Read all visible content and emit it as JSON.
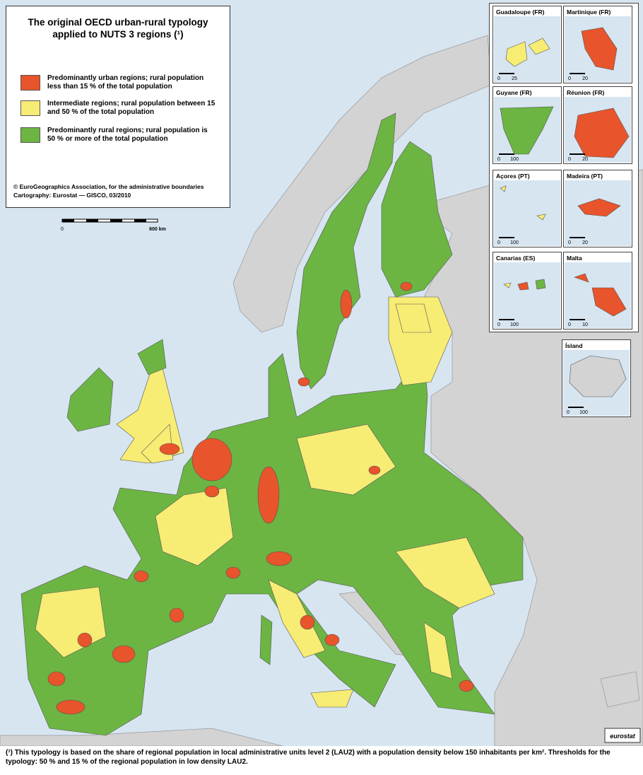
{
  "legend": {
    "title": "The original OECD urban-rural typology applied to NUTS 3 regions (¹)",
    "items": [
      {
        "label": "Predominantly urban regions; rural population less than 15 % of the total population",
        "color": "#e8542b"
      },
      {
        "label": "Intermediate regions; rural population between 15 and 50 % of the total population",
        "color": "#f7ec74"
      },
      {
        "label": "Predominantly rural regions; rural population is 50 % or more of the total population",
        "color": "#6cb543"
      }
    ],
    "credits": [
      "© EuroGeographics Association, for the administrative boundaries",
      "Cartography: Eurostat — GISCO, 03/2010"
    ]
  },
  "scale_bar": {
    "start": "0",
    "end": "600 km"
  },
  "insets": [
    {
      "label": "Guadaloupe (FR)",
      "scale": [
        "0",
        "25"
      ]
    },
    {
      "label": "Martinique (FR)",
      "scale": [
        "0",
        "20"
      ]
    },
    {
      "label": "Guyane (FR)",
      "scale": [
        "0",
        "100"
      ]
    },
    {
      "label": "Réunion (FR)",
      "scale": [
        "0",
        "20"
      ]
    },
    {
      "label": "Açores (PT)",
      "scale": [
        "0",
        "100"
      ]
    },
    {
      "label": "Madeira (PT)",
      "scale": [
        "0",
        "20"
      ]
    },
    {
      "label": "Canarias (ES)",
      "scale": [
        "0",
        "100"
      ]
    },
    {
      "label": "Malta",
      "scale": [
        "0",
        "10"
      ]
    },
    {
      "label": "Ísland",
      "scale": [
        "0",
        "100"
      ]
    }
  ],
  "logo": "eurostat",
  "footnote": "(¹) This typology is based on the share of regional population in local administrative units level 2 (LAU2) with a population density below 150 inhabitants per km². Thresholds for the typology: 50 % and 15 % of the regional population in low density LAU2."
}
